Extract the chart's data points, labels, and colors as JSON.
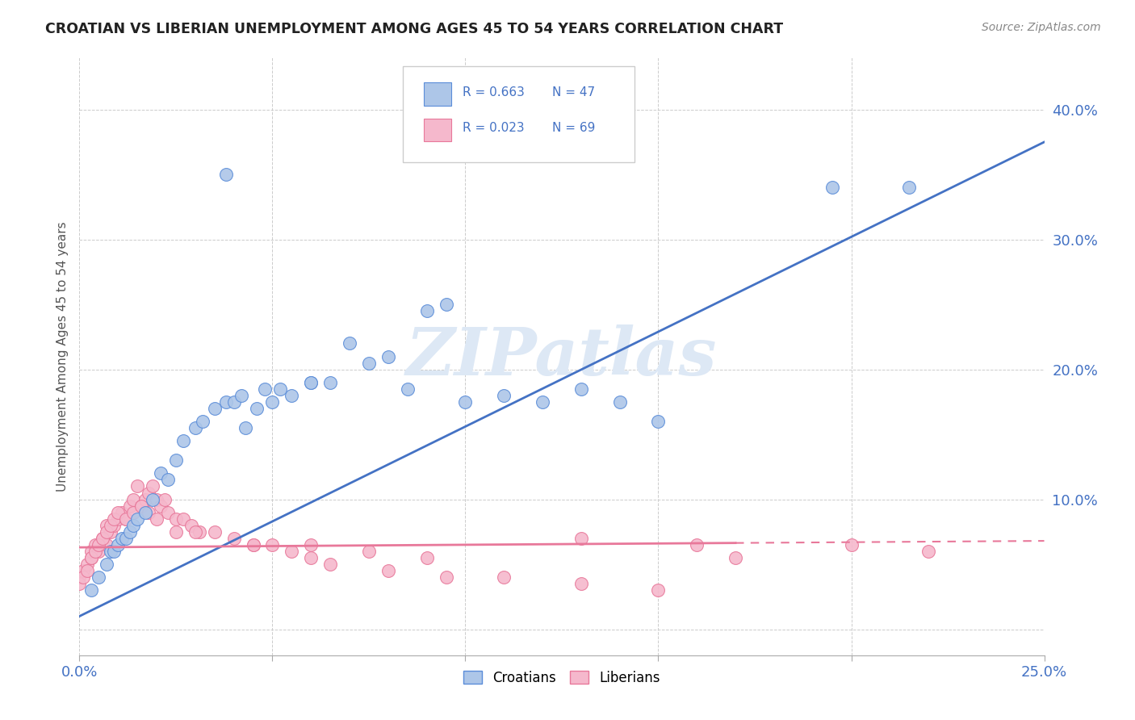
{
  "title": "CROATIAN VS LIBERIAN UNEMPLOYMENT AMONG AGES 45 TO 54 YEARS CORRELATION CHART",
  "source": "Source: ZipAtlas.com",
  "ylabel": "Unemployment Among Ages 45 to 54 years",
  "xlim": [
    0.0,
    0.25
  ],
  "ylim": [
    -0.02,
    0.44
  ],
  "xticks": [
    0.0,
    0.05,
    0.1,
    0.15,
    0.2,
    0.25
  ],
  "xticklabels": [
    "0.0%",
    "",
    "",
    "",
    "",
    "25.0%"
  ],
  "yticks": [
    0.0,
    0.1,
    0.2,
    0.3,
    0.4
  ],
  "yticklabels": [
    "",
    "10.0%",
    "20.0%",
    "30.0%",
    "40.0%"
  ],
  "croatian_color": "#adc6e8",
  "liberian_color": "#f5b8cc",
  "croatian_edge_color": "#5b8dd9",
  "liberian_edge_color": "#e8789a",
  "croatian_line_color": "#4472c4",
  "liberian_line_color": "#e8789a",
  "watermark_text": "ZIPatlas",
  "watermark_color": "#dde8f5",
  "legend_r_croatian": "R = 0.663",
  "legend_n_croatian": "N = 47",
  "legend_r_liberian": "R = 0.023",
  "legend_n_liberian": "N = 69",
  "croatian_scatter_x": [
    0.003,
    0.005,
    0.007,
    0.008,
    0.009,
    0.01,
    0.011,
    0.012,
    0.013,
    0.014,
    0.015,
    0.017,
    0.019,
    0.021,
    0.023,
    0.025,
    0.027,
    0.03,
    0.032,
    0.035,
    0.038,
    0.04,
    0.043,
    0.046,
    0.05,
    0.055,
    0.06,
    0.065,
    0.07,
    0.075,
    0.08,
    0.085,
    0.09,
    0.095,
    0.1,
    0.11,
    0.12,
    0.13,
    0.14,
    0.15,
    0.038,
    0.042,
    0.048,
    0.052,
    0.06,
    0.195,
    0.215
  ],
  "croatian_scatter_y": [
    0.03,
    0.04,
    0.05,
    0.06,
    0.06,
    0.065,
    0.07,
    0.07,
    0.075,
    0.08,
    0.085,
    0.09,
    0.1,
    0.12,
    0.115,
    0.13,
    0.145,
    0.155,
    0.16,
    0.17,
    0.175,
    0.175,
    0.155,
    0.17,
    0.175,
    0.18,
    0.19,
    0.19,
    0.22,
    0.205,
    0.21,
    0.185,
    0.245,
    0.25,
    0.175,
    0.18,
    0.175,
    0.185,
    0.175,
    0.16,
    0.35,
    0.18,
    0.185,
    0.185,
    0.19,
    0.34,
    0.34
  ],
  "liberian_scatter_x": [
    0.0,
    0.001,
    0.002,
    0.003,
    0.003,
    0.004,
    0.005,
    0.006,
    0.007,
    0.007,
    0.008,
    0.009,
    0.01,
    0.011,
    0.012,
    0.013,
    0.014,
    0.015,
    0.016,
    0.017,
    0.018,
    0.019,
    0.02,
    0.021,
    0.022,
    0.023,
    0.025,
    0.027,
    0.029,
    0.031,
    0.0,
    0.001,
    0.002,
    0.003,
    0.004,
    0.005,
    0.006,
    0.007,
    0.008,
    0.009,
    0.01,
    0.012,
    0.014,
    0.016,
    0.018,
    0.02,
    0.025,
    0.03,
    0.035,
    0.04,
    0.045,
    0.05,
    0.055,
    0.06,
    0.065,
    0.08,
    0.095,
    0.11,
    0.13,
    0.15,
    0.045,
    0.06,
    0.075,
    0.09,
    0.13,
    0.16,
    0.17,
    0.2,
    0.22
  ],
  "liberian_scatter_y": [
    0.04,
    0.045,
    0.05,
    0.055,
    0.06,
    0.065,
    0.06,
    0.07,
    0.065,
    0.08,
    0.075,
    0.08,
    0.085,
    0.09,
    0.085,
    0.095,
    0.1,
    0.11,
    0.095,
    0.1,
    0.105,
    0.11,
    0.1,
    0.095,
    0.1,
    0.09,
    0.085,
    0.085,
    0.08,
    0.075,
    0.035,
    0.04,
    0.045,
    0.055,
    0.06,
    0.065,
    0.07,
    0.075,
    0.08,
    0.085,
    0.09,
    0.085,
    0.09,
    0.095,
    0.09,
    0.085,
    0.075,
    0.075,
    0.075,
    0.07,
    0.065,
    0.065,
    0.06,
    0.055,
    0.05,
    0.045,
    0.04,
    0.04,
    0.035,
    0.03,
    0.065,
    0.065,
    0.06,
    0.055,
    0.07,
    0.065,
    0.055,
    0.065,
    0.06
  ]
}
